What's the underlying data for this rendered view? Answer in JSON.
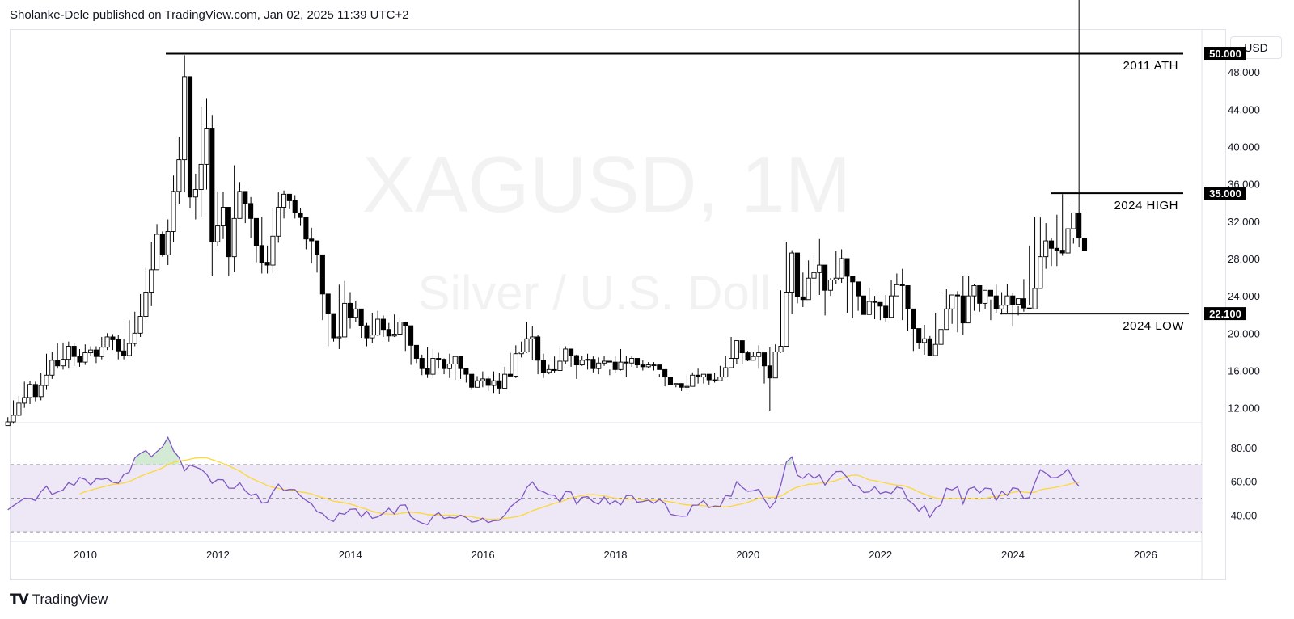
{
  "header": {
    "text": "Sholanke-Dele published on TradingView.com, Jan 02, 2025 11:39 UTC+2"
  },
  "currency_button": {
    "label": "USD"
  },
  "watermark": {
    "symbol": "XAGUSD, 1M",
    "description": "Silver / U.S. Doll"
  },
  "footer": {
    "brand": "TradingView",
    "logo_icon": "tradingview-logo-icon"
  },
  "colors": {
    "up_fill": "#ffffff",
    "down_fill": "#000000",
    "candle_border": "#000000",
    "rsi_line": "#7e57c2",
    "rsi_ma": "#fdd835",
    "rsi_band": "#ede7f6"
  },
  "chart_data": [
    {
      "type": "candlestick",
      "symbol": "XAGUSD",
      "interval": "1M",
      "ylim": [
        10.5,
        52.6
      ],
      "x_ticks": [
        "2010",
        "2012",
        "2014",
        "2016",
        "2018",
        "2020",
        "2022",
        "2024",
        "2026"
      ],
      "y_ticks": [
        "48.000",
        "44.000",
        "40.000",
        "36.000",
        "32.000",
        "28.000",
        "24.000",
        "20.000",
        "16.000",
        "12.000"
      ],
      "x_range": [
        2008.87,
        2026.85
      ],
      "start": 2008.83,
      "closes": [
        10.5,
        11.2,
        12.5,
        13.1,
        14.5,
        13.2,
        14.4,
        15.5,
        17.1,
        16.5,
        17.2,
        18.6,
        17.5,
        16.9,
        17.9,
        18.2,
        17.5,
        18.5,
        19.6,
        19.3,
        18.1,
        17.6,
        18.9,
        20.0,
        21.8,
        24.4,
        26.8,
        30.6,
        28.4,
        30.9,
        35.2,
        38.6,
        47.5,
        34.6,
        35.4,
        38.1,
        41.9,
        29.8,
        31.5,
        33.5,
        28.2,
        32.3,
        35.2,
        33.9,
        32.3,
        29.4,
        27.6,
        27.3,
        30.4,
        33.5,
        34.9,
        34.2,
        32.9,
        32.4,
        30.1,
        29.9,
        28.4,
        24.2,
        22.1,
        19.5,
        19.6,
        23.2,
        21.7,
        22.6,
        20.8,
        19.5,
        19.8,
        21.5,
        20.4,
        19.7,
        19.9,
        21.2,
        20.8,
        18.7,
        17.3,
        16.2,
        15.6,
        17.3,
        17.2,
        16.2,
        16.7,
        17.5,
        16.2,
        15.6,
        14.2,
        14.9,
        15.1,
        14.4,
        14.9,
        14.1,
        15.6,
        15.4,
        17.8,
        18.0,
        19.4,
        19.6,
        17.1,
        15.8,
        16.1,
        16.0,
        17.0,
        18.3,
        17.6,
        16.6,
        17.1,
        17.2,
        16.2,
        16.8,
        17.0,
        16.9,
        16.1,
        16.9,
        16.8,
        17.3,
        16.6,
        16.4,
        16.6,
        16.6,
        16.1,
        15.3,
        14.5,
        14.6,
        14.2,
        14.3,
        15.5,
        15.3,
        15.6,
        15.0,
        14.9,
        15.3,
        16.3,
        17.3,
        19.2,
        17.9,
        17.1,
        17.5,
        17.9,
        16.5,
        15.2,
        18.0,
        18.6,
        24.4,
        28.6,
        23.9,
        23.6,
        25.9,
        26.5,
        27.3,
        24.6,
        25.7,
        25.9,
        28.0,
        26.1,
        25.5,
        24.0,
        22.0,
        23.4,
        23.3,
        22.9,
        21.7,
        24.0,
        25.2,
        25.1,
        22.6,
        20.5,
        19.0,
        19.4,
        17.6,
        18.8,
        20.4,
        22.6,
        24.1,
        24.0,
        21.1,
        24.0,
        25.1,
        23.2,
        24.6,
        24.0,
        22.6,
        23.0,
        24.0,
        23.1,
        23.7,
        22.7,
        22.6,
        24.8,
        28.2,
        29.9,
        29.1,
        28.9,
        28.6,
        31.2,
        32.9,
        30.2,
        28.9
      ],
      "highs": [
        11.0,
        12.8,
        13.3,
        14.8,
        14.9,
        14.8,
        15.7,
        17.8,
        18.0,
        18.9,
        19.0,
        19.1,
        18.9,
        18.3,
        18.8,
        18.6,
        18.6,
        19.6,
        20.0,
        19.9,
        19.8,
        19.4,
        21.4,
        22.3,
        24.2,
        27.1,
        29.8,
        31.7,
        30.9,
        32.2,
        36.9,
        41.0,
        49.8,
        39.4,
        37.1,
        44.2,
        45.2,
        43.4,
        35.2,
        35.1,
        33.5,
        38.0,
        36.2,
        35.2,
        34.6,
        31.6,
        32.5,
        29.4,
        33.4,
        35.1,
        35.3,
        34.5,
        34.8,
        33.4,
        32.0,
        31.3,
        29.6,
        25.2,
        23.5,
        21.6,
        25.2,
        25.6,
        24.4,
        23.5,
        21.9,
        21.1,
        22.2,
        22.4,
        21.9,
        21.1,
        22.0,
        21.7,
        21.2,
        19.1,
        18.1,
        17.7,
        18.5,
        18.3,
        17.9,
        17.3,
        17.8,
        17.6,
        16.8,
        16.1,
        15.3,
        15.4,
        15.9,
        15.4,
        15.9,
        15.7,
        16.4,
        17.9,
        18.7,
        19.1,
        21.2,
        20.8,
        19.8,
        17.8,
        16.6,
        17.5,
        18.6,
        18.6,
        18.0,
        17.7,
        17.6,
        17.8,
        17.5,
        17.4,
        17.6,
        16.1,
        17.5,
        18.3,
        17.6,
        17.6,
        17.0,
        17.1,
        16.9,
        16.9,
        15.6,
        15.4,
        14.9,
        14.6,
        14.4,
        15.6,
        15.8,
        16.2,
        15.6,
        15.3,
        15.7,
        16.5,
        17.6,
        19.6,
        19.2,
        19.2,
        18.1,
        18.0,
        18.7,
        17.4,
        18.5,
        18.8,
        24.6,
        29.8,
        28.9,
        26.1,
        26.5,
        27.8,
        28.4,
        30.1,
        26.1,
        25.9,
        28.8,
        29.0,
        27.1,
        25.9,
        24.6,
        23.7,
        24.9,
        24.0,
        22.9,
        24.1,
        25.7,
        26.4,
        26.9,
        23.2,
        21.2,
        19.9,
        20.9,
        19.7,
        22.2,
        24.3,
        24.7,
        24.1,
        24.5,
        26.1,
        26.1,
        25.3,
        25.0,
        24.4,
        23.6,
        25.2,
        24.4,
        25.3,
        24.3,
        22.9,
        25.8,
        29.4,
        32.5,
        32.4,
        31.8,
        30.2,
        32.7,
        34.9,
        33.6,
        30.2
      ],
      "lows": [
        10.1,
        10.3,
        11.1,
        12.0,
        12.4,
        12.7,
        12.8,
        14.0,
        15.1,
        16.2,
        16.1,
        16.2,
        16.5,
        16.4,
        16.6,
        17.6,
        16.8,
        17.2,
        18.2,
        18.2,
        17.2,
        17.2,
        17.5,
        18.6,
        19.6,
        21.5,
        22.9,
        26.8,
        28.2,
        27.3,
        29.8,
        33.8,
        35.1,
        33.4,
        32.2,
        32.4,
        35.4,
        26.1,
        29.3,
        30.1,
        26.1,
        26.6,
        32.9,
        31.8,
        30.2,
        27.6,
        26.4,
        26.4,
        26.4,
        29.7,
        32.3,
        33.3,
        32.3,
        31.5,
        29.0,
        27.5,
        26.5,
        21.4,
        18.6,
        19.1,
        18.3,
        20.8,
        20.5,
        21.2,
        19.5,
        18.6,
        18.9,
        19.7,
        19.6,
        19.1,
        19.6,
        19.9,
        18.1,
        16.6,
        16.8,
        15.5,
        15.2,
        15.2,
        16.2,
        15.6,
        15.2,
        15.0,
        15.1,
        14.7,
        14.0,
        14.5,
        14.2,
        13.8,
        13.6,
        13.5,
        14.8,
        15.4,
        15.2,
        17.4,
        17.9,
        17.1,
        15.6,
        15.2,
        15.6,
        15.7,
        16.4,
        16.7,
        16.4,
        15.1,
        16.5,
        16.1,
        15.8,
        15.6,
        16.5,
        15.5,
        15.7,
        16.0,
        15.3,
        16.4,
        16.3,
        16.0,
        16.3,
        16.0,
        15.3,
        14.3,
        14.4,
        14.2,
        13.8,
        14.0,
        14.9,
        14.6,
        14.6,
        14.5,
        14.7,
        14.9,
        16.1,
        16.8,
        16.7,
        16.7,
        17.0,
        17.2,
        16.2,
        14.6,
        11.7,
        17.4,
        17.9,
        23.6,
        22.1,
        23.2,
        22.8,
        24.8,
        26.0,
        24.1,
        21.9,
        24.0,
        25.3,
        25.4,
        22.2,
        21.6,
        22.4,
        22.5,
        22.9,
        21.5,
        21.4,
        21.2,
        22.1,
        24.0,
        21.4,
        20.2,
        18.1,
        18.3,
        17.7,
        17.6,
        18.5,
        19.9,
        21.1,
        21.0,
        20.1,
        19.8,
        21.6,
        22.4,
        22.3,
        22.6,
        21.4,
        22.2,
        22.0,
        22.2,
        20.7,
        21.9,
        22.3,
        23.0,
        24.8,
        26.6,
        26.9,
        27.2,
        27.2,
        28.3,
        30.0,
        29.6,
        29.2
      ],
      "annotations": [
        {
          "label": "2011 ATH",
          "price": 50.0,
          "price_label": "50.000"
        },
        {
          "label": "2024 HIGH",
          "price": 35.0,
          "price_label": "35.000"
        },
        {
          "label": "2024 LOW",
          "price": 22.1,
          "price_label": "22.100"
        }
      ]
    },
    {
      "type": "line",
      "name": "RSI",
      "ylim": [
        25.7,
        94.5
      ],
      "y_ticks": [
        "80.00",
        "60.00",
        "40.00"
      ],
      "bands": {
        "upper": 70,
        "middle": 50,
        "lower": 30
      },
      "rsi": [
        43.1,
        45.5,
        47.7,
        50.0,
        49.8,
        48.6,
        53.9,
        57.1,
        52.2,
        53.7,
        54.9,
        59.3,
        57.6,
        62.3,
        61.2,
        57.9,
        61.6,
        61.2,
        61.8,
        59.5,
        58.9,
        64.2,
        65.5,
        74.0,
        76.7,
        78.4,
        74.6,
        77.8,
        80.5,
        86.2,
        78.3,
        74.2,
        66.3,
        69.8,
        68.5,
        67.2,
        64.3,
        58.8,
        61.1,
        60.9,
        56.0,
        55.9,
        59.2,
        54.3,
        51.7,
        52.6,
        47.1,
        47.5,
        53.8,
        58.3,
        54.4,
        55.2,
        55.1,
        51.3,
        48.7,
        46.7,
        42.0,
        40.8,
        37.5,
        36.2,
        41.1,
        40.4,
        43.4,
        43.6,
        38.9,
        42.3,
        38.0,
        38.9,
        41.0,
        44.0,
        40.6,
        45.7,
        46.0,
        39.0,
        36.7,
        35.2,
        34.2,
        39.1,
        41.4,
        37.9,
        38.6,
        38.1,
        39.9,
        38.5,
        35.7,
        36.3,
        38.1,
        35.5,
        36.6,
        36.8,
        39.9,
        44.7,
        47.5,
        49.7,
        56.4,
        59.7,
        54.9,
        53.8,
        52.0,
        51.7,
        47.8,
        54.0,
        53.6,
        46.5,
        50.5,
        50.9,
        47.9,
        46.4,
        50.7,
        46.4,
        48.6,
        46.0,
        51.5,
        51.7,
        47.6,
        48.0,
        48.8,
        46.9,
        49.3,
        46.8,
        40.4,
        39.7,
        39.2,
        39.4,
        45.8,
        45.9,
        48.6,
        44.4,
        45.4,
        45.1,
        51.6,
        51.1,
        59.8,
        56.5,
        54.1,
        54.4,
        55.3,
        49.3,
        44.1,
        48.1,
        57.9,
        71.5,
        74.6,
        63.6,
        61.8,
        64.7,
        61.9,
        63.8,
        57.8,
        62.5,
        65.8,
        65.9,
        62.4,
        58.0,
        57.1,
        53.4,
        53.7,
        56.8,
        52.7,
        53.8,
        52.8,
        56.6,
        55.8,
        49.0,
        46.5,
        42.3,
        45.6,
        38.7,
        44.0,
        46.1,
        55.9,
        54.9,
        56.8,
        46.7,
        55.4,
        56.6,
        53.1,
        56.0,
        55.6,
        48.7,
        54.2,
        51.6,
        56.2,
        55.5,
        49.7,
        50.4,
        59.2,
        67.0,
        64.9,
        62.1,
        62.3,
        64.2,
        67.4,
        61.1,
        57.0
      ]
    }
  ]
}
